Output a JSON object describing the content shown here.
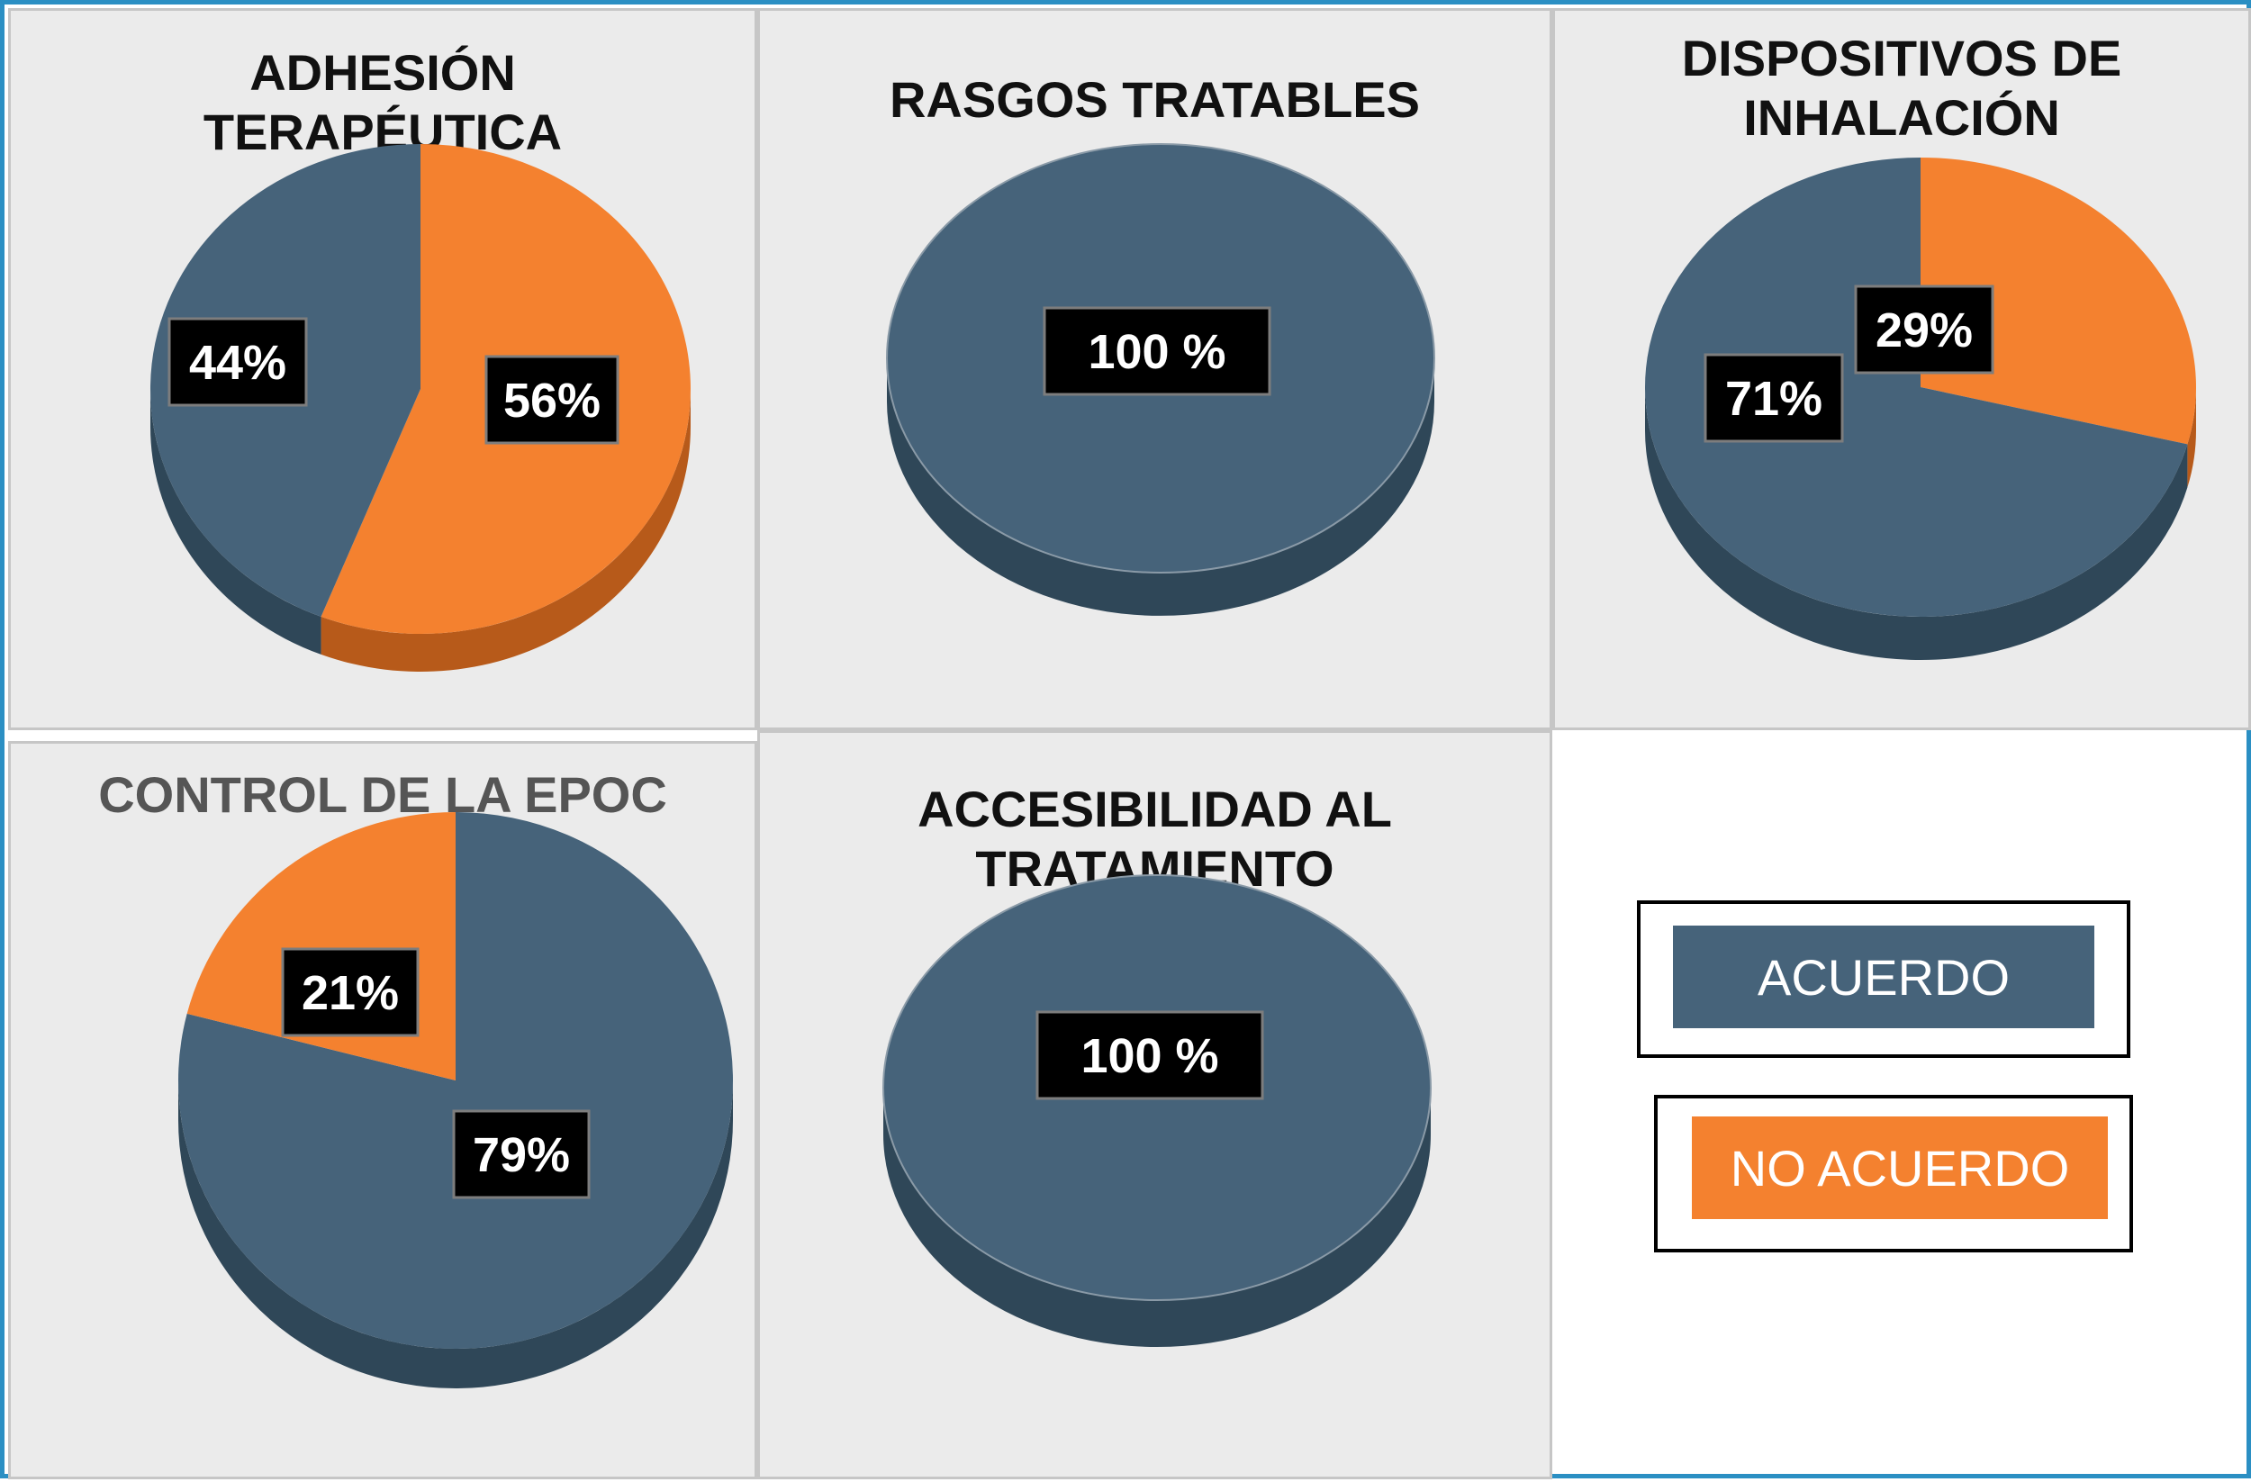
{
  "colors": {
    "acuerdo": "#46637a",
    "acuerdo_side": "#2f4758",
    "no_acuerdo": "#f4812f",
    "no_acuerdo_side": "#b75a1a",
    "label_bg": "#000000",
    "label_text": "#ffffff",
    "panel_bg": "#ebebeb",
    "frame": "#2b8fc3"
  },
  "legend": {
    "acuerdo": "ACUERDO",
    "no_acuerdo": "NO ACUERDO"
  },
  "chart_data": [
    {
      "type": "pie",
      "title": "ADHESIÓN\nTERAPÉUTICA",
      "slices": [
        {
          "category": "NO ACUERDO",
          "value": 56,
          "label": "56%"
        },
        {
          "category": "ACUERDO",
          "value": 44,
          "label": "44%"
        }
      ]
    },
    {
      "type": "pie",
      "title": "RASGOS TRATABLES",
      "slices": [
        {
          "category": "ACUERDO",
          "value": 100,
          "label": "100 %"
        }
      ]
    },
    {
      "type": "pie",
      "title": "DISPOSITIVOS DE\nINHALACIÓN",
      "slices": [
        {
          "category": "NO ACUERDO",
          "value": 29,
          "label": "29%"
        },
        {
          "category": "ACUERDO",
          "value": 71,
          "label": "71%"
        }
      ]
    },
    {
      "type": "pie",
      "title": "CONTROL DE LA  EPOC",
      "slices": [
        {
          "category": "ACUERDO",
          "value": 79,
          "label": "79%"
        },
        {
          "category": "NO ACUERDO",
          "value": 21,
          "label": "21%"
        }
      ]
    },
    {
      "type": "pie",
      "title": "ACCESIBILIDAD AL\nTRATAMIENTO",
      "slices": [
        {
          "category": "ACUERDO",
          "value": 100,
          "label": "100 %"
        }
      ]
    }
  ]
}
